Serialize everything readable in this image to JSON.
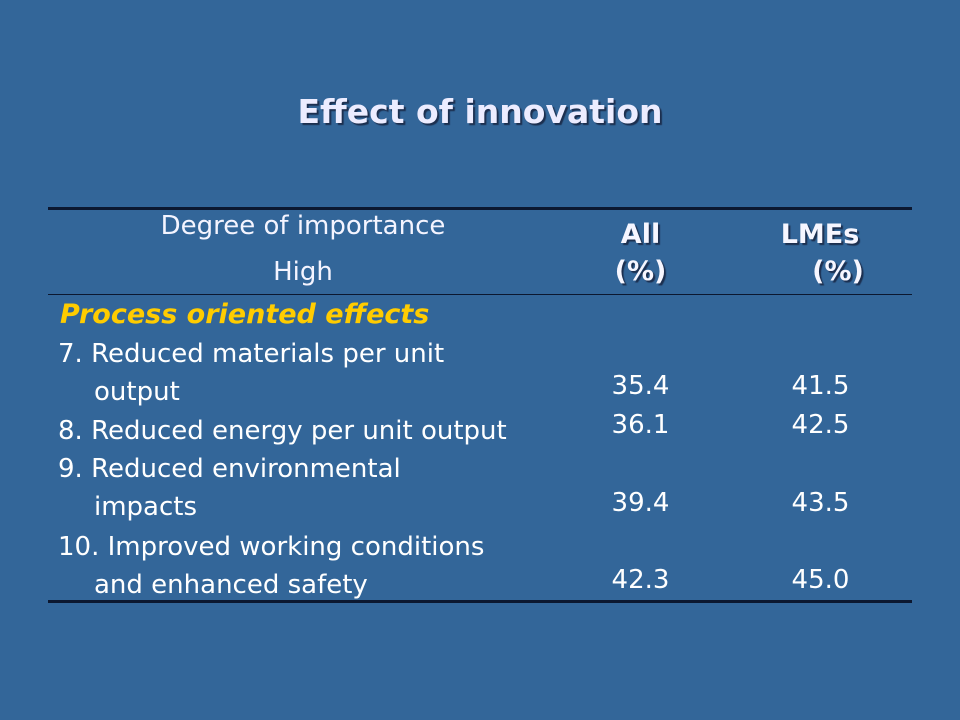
{
  "slide": {
    "title": "Effect of innovation"
  },
  "table": {
    "header": {
      "col1_line1": "Degree of importance",
      "col1_line2": "High",
      "col2_line1": "All",
      "col2_line2": "(%)",
      "col3_line1": "LMEs",
      "col3_line2": "(%)"
    },
    "section_label": "Process oriented effects",
    "rows": [
      {
        "label_lines": [
          "7. Reduced materials per unit",
          "output"
        ],
        "all": "35.4",
        "lmes": "41.5"
      },
      {
        "label_lines": [
          "8. Reduced energy per unit output"
        ],
        "all": "36.1",
        "lmes": "42.5"
      },
      {
        "label_lines": [
          "9.  Reduced environmental",
          "impacts"
        ],
        "all": "39.4",
        "lmes": "43.5"
      },
      {
        "label_lines": [
          "10. Improved working conditions",
          "and enhanced safety"
        ],
        "all": "42.3",
        "lmes": "45.0"
      }
    ]
  },
  "colors": {
    "background": "#336699",
    "section_label": "#ffcc00",
    "rules": "#0c1830"
  }
}
